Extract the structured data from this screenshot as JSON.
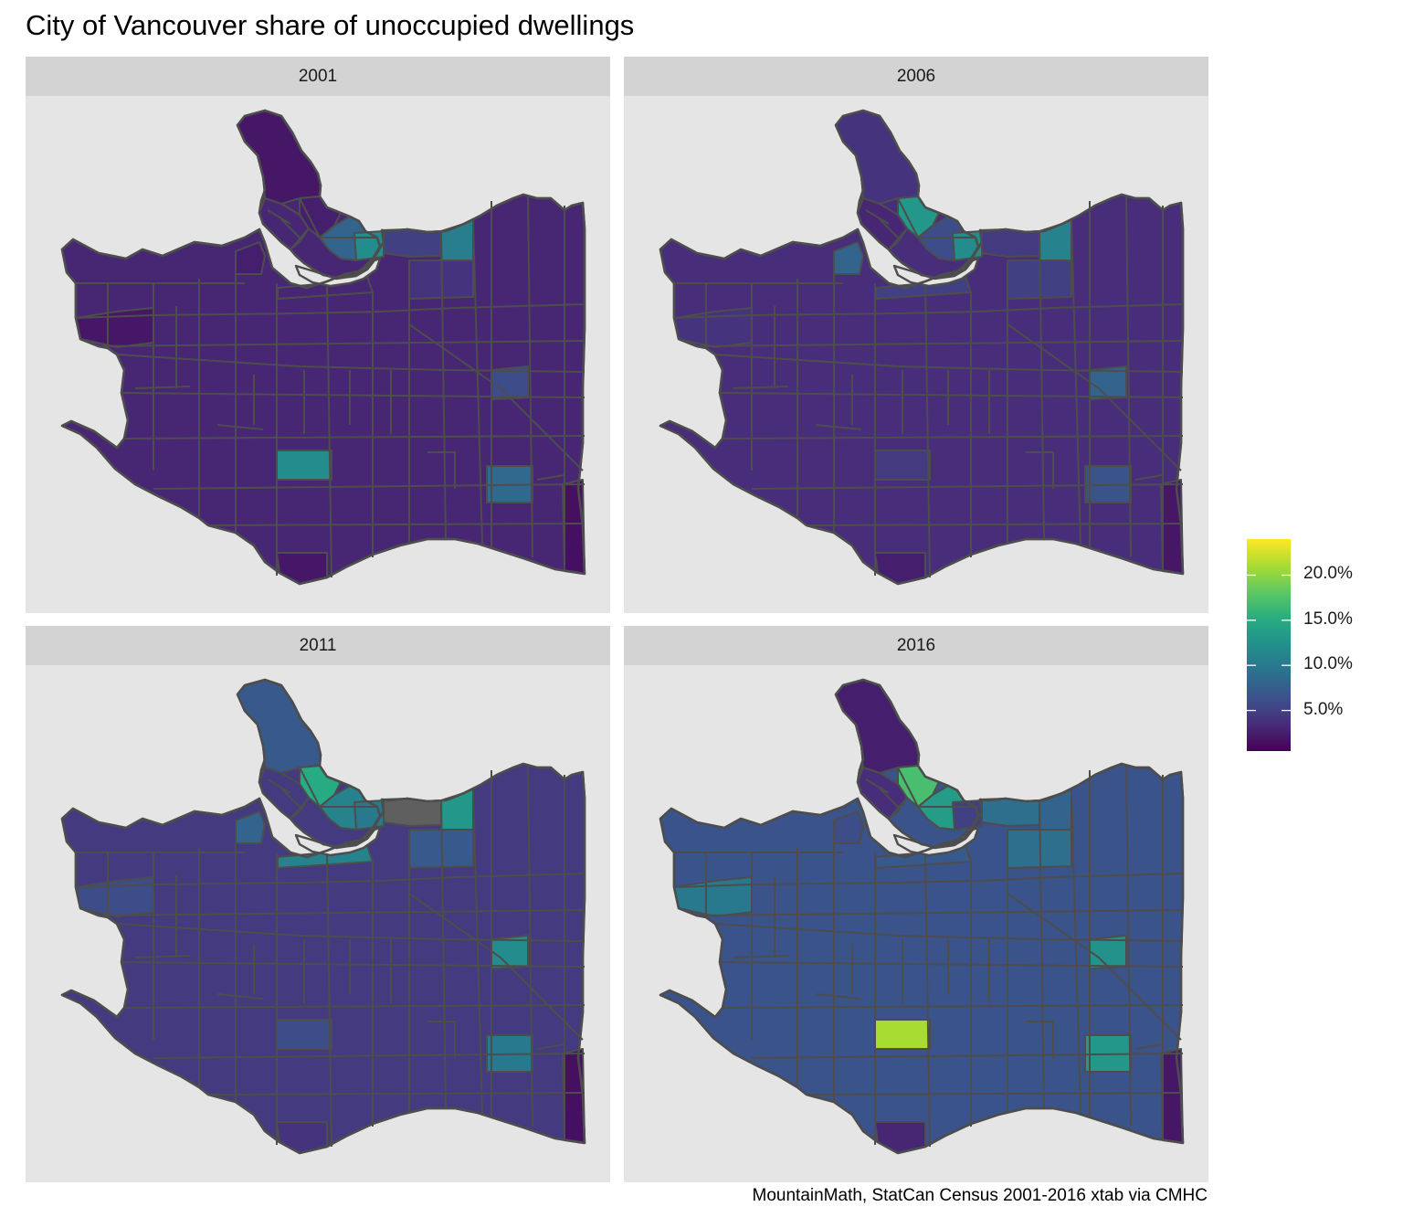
{
  "title": "City of Vancouver share of unoccupied dwellings",
  "caption": "MountainMath, StatCan Census 2001-2016 xtab via CMHC",
  "legend": {
    "ticks": [
      "5.0%",
      "10.0%",
      "15.0%",
      "20.0%"
    ],
    "tick_values": [
      5,
      10,
      15,
      20
    ],
    "range": [
      0.5,
      24
    ],
    "palette": "viridis",
    "colors": [
      "#440154",
      "#3b528b",
      "#21908c",
      "#5dc863",
      "#fde725"
    ]
  },
  "missing_color": "#5f5f5f",
  "border_color": "#4d4d4d",
  "panel_background": "#e5e5e5",
  "strip_background": "#d3d3d3",
  "panels": [
    {
      "year": "2001",
      "base_value": 3.0,
      "highlights": {
        "stanley_park": 2.0,
        "downtown_west": 3.0,
        "downtown_mid": 2.5,
        "downtown_east": 8.0,
        "coal_harbour": 5.0,
        "east_waterfront": 10.5,
        "strathcona": 12.0,
        "burrard_slopes": 2.5,
        "fairview_band": 3.0,
        "kitsilano": 2.0,
        "grandview": 4.0,
        "south_central": 12.0,
        "southeast": 8.5,
        "far_southeast": 1.5,
        "killarney": 6.0,
        "marpole": 2.0
      }
    },
    {
      "year": "2006",
      "base_value": 3.5,
      "highlights": {
        "stanley_park": 4.0,
        "downtown_west": 3.0,
        "downtown_mid": 13.0,
        "downtown_east": 6.0,
        "coal_harbour": 4.5,
        "east_waterfront": 11.0,
        "strathcona": 12.0,
        "burrard_slopes": 8.0,
        "fairview_band": 5.0,
        "kitsilano": 4.0,
        "grandview": 5.0,
        "south_central": 4.5,
        "southeast": 6.5,
        "far_southeast": 2.0,
        "killarney": 8.0,
        "marpole": 2.5
      }
    },
    {
      "year": "2011",
      "base_value": 4.5,
      "highlights": {
        "stanley_park": 7.0,
        "downtown_west": 4.5,
        "downtown_mid": 15.0,
        "downtown_east": 11.0,
        "coal_harbour": null,
        "east_waterfront": 13.0,
        "strathcona": 10.0,
        "burrard_slopes": 8.0,
        "fairview_band": 11.0,
        "kitsilano": 6.0,
        "grandview": 7.0,
        "south_central": 6.0,
        "southeast": 10.0,
        "far_southeast": 1.5,
        "killarney": 12.0,
        "marpole": 4.0
      }
    },
    {
      "year": "2016",
      "base_value": 6.5,
      "highlights": {
        "stanley_park": 2.5,
        "downtown_west": 3.5,
        "downtown_mid": 17.0,
        "downtown_east": 13.5,
        "coal_harbour": 9.0,
        "east_waterfront": 8.0,
        "strathcona": 5.0,
        "burrard_slopes": 6.0,
        "fairview_band": 7.0,
        "kitsilano": 10.0,
        "grandview": 9.0,
        "south_central": 21.0,
        "southeast": 13.0,
        "far_southeast": 2.0,
        "killarney": 12.5,
        "marpole": 3.0
      }
    }
  ]
}
